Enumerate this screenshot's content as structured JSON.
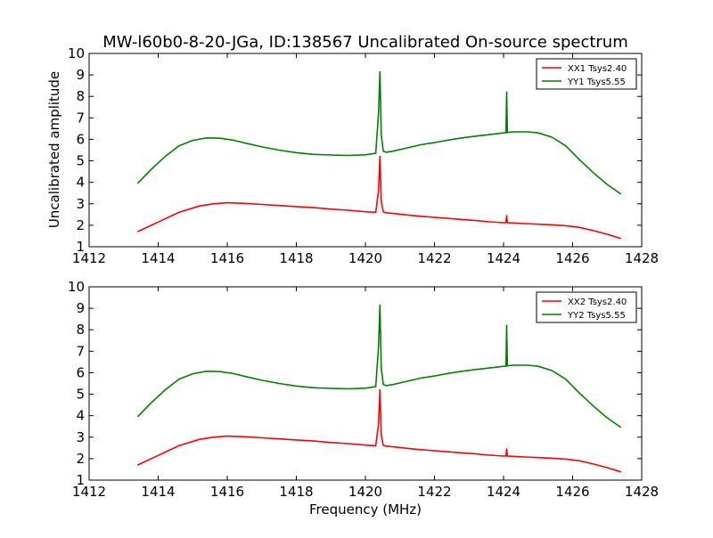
{
  "title": "MW-l60b0-8-20-JGa, ID:138567 Uncalibrated On-source spectrum",
  "xlabel": "Frequency (MHz)",
  "ylabel": "Uncalibrated amplitude",
  "colors": {
    "xx": "#ff0000",
    "yy": "#008000",
    "axes": "#000000",
    "background": "#ffffff"
  },
  "chart_data": [
    {
      "type": "line",
      "xlim": [
        1412,
        1428
      ],
      "ylim": [
        1,
        10
      ],
      "xticks": [
        1412,
        1414,
        1416,
        1418,
        1420,
        1422,
        1424,
        1426,
        1428
      ],
      "yticks": [
        1,
        2,
        3,
        4,
        5,
        6,
        7,
        8,
        9,
        10
      ],
      "grid": false,
      "legend": "top-right",
      "series": [
        {
          "name": "XX1 Tsys2.40",
          "color": "#ff0000",
          "x": [
            1413.4,
            1414.0,
            1414.6,
            1415.2,
            1415.6,
            1416.0,
            1416.5,
            1417.0,
            1417.5,
            1418.0,
            1418.5,
            1419.0,
            1419.5,
            1420.0,
            1420.3,
            1420.38,
            1420.42,
            1420.46,
            1420.52,
            1420.6,
            1420.8,
            1421.2,
            1421.6,
            1422.0,
            1422.4,
            1422.8,
            1423.2,
            1423.6,
            1424.0,
            1424.07,
            1424.09,
            1424.11,
            1424.2,
            1424.6,
            1425.0,
            1425.4,
            1425.8,
            1426.2,
            1426.6,
            1427.0,
            1427.4
          ],
          "y": [
            1.7,
            2.15,
            2.6,
            2.9,
            3.0,
            3.05,
            3.02,
            2.97,
            2.92,
            2.87,
            2.82,
            2.75,
            2.7,
            2.63,
            2.6,
            3.6,
            5.2,
            3.1,
            2.62,
            2.58,
            2.55,
            2.48,
            2.42,
            2.37,
            2.32,
            2.27,
            2.22,
            2.16,
            2.12,
            2.12,
            2.45,
            2.12,
            2.11,
            2.08,
            2.05,
            2.02,
            1.98,
            1.9,
            1.75,
            1.58,
            1.38
          ]
        },
        {
          "name": "YY1 Tsys5.55",
          "color": "#008000",
          "x": [
            1413.4,
            1413.8,
            1414.2,
            1414.6,
            1415.0,
            1415.4,
            1415.8,
            1416.2,
            1416.6,
            1417.0,
            1417.5,
            1418.0,
            1418.5,
            1419.0,
            1419.5,
            1420.0,
            1420.3,
            1420.38,
            1420.42,
            1420.46,
            1420.52,
            1420.6,
            1420.8,
            1421.2,
            1421.6,
            1422.0,
            1422.4,
            1422.8,
            1423.2,
            1423.6,
            1424.0,
            1424.07,
            1424.09,
            1424.11,
            1424.3,
            1424.7,
            1425.0,
            1425.4,
            1425.8,
            1426.2,
            1426.6,
            1427.0,
            1427.4
          ],
          "y": [
            3.95,
            4.6,
            5.2,
            5.7,
            5.95,
            6.07,
            6.05,
            5.95,
            5.8,
            5.65,
            5.5,
            5.38,
            5.3,
            5.27,
            5.25,
            5.28,
            5.35,
            7.2,
            9.15,
            6.2,
            5.45,
            5.4,
            5.45,
            5.6,
            5.75,
            5.85,
            5.97,
            6.07,
            6.15,
            6.22,
            6.3,
            6.3,
            8.2,
            6.32,
            6.35,
            6.35,
            6.3,
            6.1,
            5.7,
            5.05,
            4.45,
            3.9,
            3.45
          ]
        }
      ]
    },
    {
      "type": "line",
      "xlabel": "Frequency (MHz)",
      "xlim": [
        1412,
        1428
      ],
      "ylim": [
        1,
        10
      ],
      "xticks": [
        1412,
        1414,
        1416,
        1418,
        1420,
        1422,
        1424,
        1426,
        1428
      ],
      "yticks": [
        1,
        2,
        3,
        4,
        5,
        6,
        7,
        8,
        9,
        10
      ],
      "grid": false,
      "legend": "top-right",
      "series": [
        {
          "name": "XX2 Tsys2.40",
          "color": "#ff0000",
          "x": [
            1413.4,
            1414.0,
            1414.6,
            1415.2,
            1415.6,
            1416.0,
            1416.5,
            1417.0,
            1417.5,
            1418.0,
            1418.5,
            1419.0,
            1419.5,
            1420.0,
            1420.3,
            1420.38,
            1420.42,
            1420.46,
            1420.52,
            1420.6,
            1420.8,
            1421.2,
            1421.6,
            1422.0,
            1422.4,
            1422.8,
            1423.2,
            1423.6,
            1424.0,
            1424.07,
            1424.09,
            1424.11,
            1424.2,
            1424.6,
            1425.0,
            1425.4,
            1425.8,
            1426.2,
            1426.6,
            1427.0,
            1427.4
          ],
          "y": [
            1.7,
            2.15,
            2.6,
            2.9,
            3.0,
            3.05,
            3.02,
            2.97,
            2.92,
            2.87,
            2.82,
            2.75,
            2.7,
            2.63,
            2.6,
            3.6,
            5.2,
            3.1,
            2.62,
            2.58,
            2.55,
            2.48,
            2.42,
            2.37,
            2.32,
            2.27,
            2.22,
            2.16,
            2.12,
            2.12,
            2.45,
            2.12,
            2.11,
            2.08,
            2.05,
            2.02,
            1.98,
            1.9,
            1.75,
            1.58,
            1.38
          ]
        },
        {
          "name": "YY2 Tsys5.55",
          "color": "#008000",
          "x": [
            1413.4,
            1413.8,
            1414.2,
            1414.6,
            1415.0,
            1415.4,
            1415.8,
            1416.2,
            1416.6,
            1417.0,
            1417.5,
            1418.0,
            1418.5,
            1419.0,
            1419.5,
            1420.0,
            1420.3,
            1420.38,
            1420.42,
            1420.46,
            1420.52,
            1420.6,
            1420.8,
            1421.2,
            1421.6,
            1422.0,
            1422.4,
            1422.8,
            1423.2,
            1423.6,
            1424.0,
            1424.07,
            1424.09,
            1424.11,
            1424.3,
            1424.7,
            1425.0,
            1425.4,
            1425.8,
            1426.2,
            1426.6,
            1427.0,
            1427.4
          ],
          "y": [
            3.95,
            4.6,
            5.2,
            5.7,
            5.95,
            6.07,
            6.05,
            5.95,
            5.8,
            5.65,
            5.5,
            5.38,
            5.3,
            5.27,
            5.25,
            5.28,
            5.35,
            7.2,
            9.15,
            6.2,
            5.45,
            5.4,
            5.45,
            5.6,
            5.75,
            5.85,
            5.97,
            6.07,
            6.15,
            6.22,
            6.3,
            6.3,
            8.2,
            6.32,
            6.35,
            6.35,
            6.3,
            6.1,
            5.7,
            5.05,
            4.45,
            3.9,
            3.45
          ]
        }
      ]
    }
  ]
}
